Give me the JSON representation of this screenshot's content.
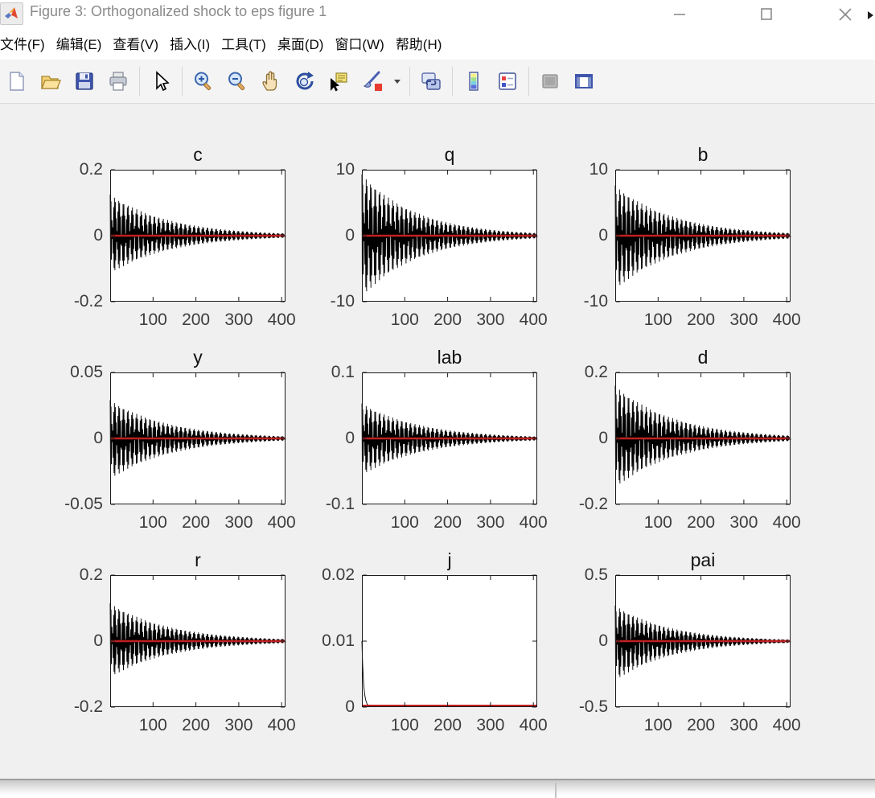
{
  "window": {
    "title": "Figure 3: Orthogonalized shock to eps figure 1",
    "controls": [
      "minimize",
      "maximize",
      "close"
    ]
  },
  "menu": {
    "items": [
      {
        "key": "file",
        "label": "文件(F)"
      },
      {
        "key": "edit",
        "label": "编辑(E)"
      },
      {
        "key": "view",
        "label": "查看(V)"
      },
      {
        "key": "insert",
        "label": "插入(I)"
      },
      {
        "key": "tools",
        "label": "工具(T)"
      },
      {
        "key": "desktop",
        "label": "桌面(D)"
      },
      {
        "key": "window",
        "label": "窗口(W)"
      },
      {
        "key": "help",
        "label": "帮助(H)"
      }
    ]
  },
  "toolbar": {
    "buttons": [
      "new-figure",
      "open-file",
      "save-figure",
      "print-figure",
      "sep",
      "edit-plot",
      "sep",
      "zoom-in",
      "zoom-out",
      "pan",
      "rotate-3d",
      "data-cursor",
      "brush-data",
      "brush-dropdown",
      "sep",
      "link-plots",
      "sep",
      "insert-colorbar",
      "insert-legend",
      "sep",
      "hide-plot-tools",
      "show-plot-tools"
    ]
  },
  "colors": {
    "figure_background": "#f0f0f0",
    "steady_state_red": "#c02020",
    "impulse_black": "#000000",
    "axes_border": "#1a1a1a"
  },
  "chart_data": [
    {
      "type": "line",
      "title": "c",
      "xlim": [
        0,
        409
      ],
      "xticks": [
        100,
        200,
        300,
        400
      ],
      "ylim": [
        -0.2,
        0.2
      ],
      "yticklabels": [
        "0.2",
        "0",
        "-0.2"
      ],
      "series": [
        {
          "name": "impulse-response",
          "style": "damped-oscillation",
          "amplitude_top": 0.125,
          "amplitude_bottom": 0.115,
          "decay_tau": 140,
          "beat_period": 10.3,
          "color": "#000000"
        },
        {
          "name": "steady-state",
          "style": "hline",
          "y": 0,
          "color": "#c02020"
        }
      ]
    },
    {
      "type": "line",
      "title": "q",
      "xlim": [
        0,
        409
      ],
      "xticks": [
        100,
        200,
        300,
        400
      ],
      "ylim": [
        -10,
        10
      ],
      "yticklabels": [
        "10",
        "0",
        "-10"
      ],
      "series": [
        {
          "name": "impulse-response",
          "style": "damped-oscillation",
          "amplitude_top": 9.3,
          "amplitude_bottom": 9.3,
          "decay_tau": 130,
          "beat_period": 10.3,
          "color": "#000000"
        },
        {
          "name": "steady-state",
          "style": "hline",
          "y": 0,
          "color": "#c02020"
        }
      ]
    },
    {
      "type": "line",
      "title": "b",
      "xlim": [
        0,
        409
      ],
      "xticks": [
        100,
        200,
        300,
        400
      ],
      "ylim": [
        -10,
        10
      ],
      "yticklabels": [
        "10",
        "0",
        "-10"
      ],
      "series": [
        {
          "name": "impulse-response",
          "style": "damped-oscillation",
          "amplitude_top": 7.6,
          "amplitude_bottom": 8.2,
          "decay_tau": 140,
          "beat_period": 10.3,
          "color": "#000000"
        },
        {
          "name": "steady-state",
          "style": "hline",
          "y": 0,
          "color": "#c02020"
        }
      ]
    },
    {
      "type": "line",
      "title": "y",
      "xlim": [
        0,
        409
      ],
      "xticks": [
        100,
        200,
        300,
        400
      ],
      "ylim": [
        -0.05,
        0.05
      ],
      "yticklabels": [
        "0.05",
        "0",
        "-0.05"
      ],
      "series": [
        {
          "name": "impulse-response",
          "style": "damped-oscillation",
          "amplitude_top": 0.029,
          "amplitude_bottom": 0.031,
          "decay_tau": 140,
          "beat_period": 10.3,
          "color": "#000000"
        },
        {
          "name": "steady-state",
          "style": "hline",
          "y": 0,
          "color": "#c02020"
        }
      ]
    },
    {
      "type": "line",
      "title": "lab",
      "xlim": [
        0,
        409
      ],
      "xticks": [
        100,
        200,
        300,
        400
      ],
      "ylim": [
        -0.1,
        0.1
      ],
      "yticklabels": [
        "0.1",
        "0",
        "-0.1"
      ],
      "series": [
        {
          "name": "impulse-response",
          "style": "damped-oscillation",
          "amplitude_top": 0.053,
          "amplitude_bottom": 0.056,
          "decay_tau": 140,
          "beat_period": 10.3,
          "color": "#000000"
        },
        {
          "name": "steady-state",
          "style": "hline",
          "y": 0,
          "color": "#c02020"
        }
      ]
    },
    {
      "type": "line",
      "title": "d",
      "xlim": [
        0,
        409
      ],
      "xticks": [
        100,
        200,
        300,
        400
      ],
      "ylim": [
        -0.2,
        0.2
      ],
      "yticklabels": [
        "0.2",
        "0",
        "-0.2"
      ],
      "series": [
        {
          "name": "impulse-response",
          "style": "damped-oscillation",
          "amplitude_top": 0.16,
          "amplitude_bottom": 0.15,
          "decay_tau": 140,
          "beat_period": 10.3,
          "color": "#000000"
        },
        {
          "name": "steady-state",
          "style": "hline",
          "y": 0,
          "color": "#c02020"
        }
      ]
    },
    {
      "type": "line",
      "title": "r",
      "xlim": [
        0,
        409
      ],
      "xticks": [
        100,
        200,
        300,
        400
      ],
      "ylim": [
        -0.2,
        0.2
      ],
      "yticklabels": [
        "0.2",
        "0",
        "-0.2"
      ],
      "series": [
        {
          "name": "impulse-response",
          "style": "damped-oscillation",
          "amplitude_top": 0.115,
          "amplitude_bottom": 0.11,
          "decay_tau": 140,
          "beat_period": 10.3,
          "color": "#000000"
        },
        {
          "name": "steady-state",
          "style": "hline",
          "y": 0,
          "color": "#c02020"
        }
      ]
    },
    {
      "type": "line",
      "title": "j",
      "xlim": [
        0,
        409
      ],
      "xticks": [
        100,
        200,
        300,
        400
      ],
      "ylim": [
        0,
        0.02
      ],
      "yticklabels": [
        "0.02",
        "0.01",
        "0"
      ],
      "series": [
        {
          "name": "impulse-response",
          "style": "exp-decay",
          "start": 0.01,
          "decay_tau": 4,
          "color": "#000000"
        },
        {
          "name": "steady-state",
          "style": "hline",
          "y": 0,
          "color": "#c02020"
        }
      ]
    },
    {
      "type": "line",
      "title": "pai",
      "xlim": [
        0,
        409
      ],
      "xticks": [
        100,
        200,
        300,
        400
      ],
      "ylim": [
        -0.5,
        0.5
      ],
      "yticklabels": [
        "0.5",
        "0",
        "-0.5"
      ],
      "series": [
        {
          "name": "impulse-response",
          "style": "damped-oscillation",
          "amplitude_top": 0.27,
          "amplitude_bottom": 0.3,
          "decay_tau": 130,
          "beat_period": 10.3,
          "color": "#000000"
        },
        {
          "name": "steady-state",
          "style": "hline",
          "y": 0,
          "color": "#c02020"
        }
      ]
    }
  ]
}
